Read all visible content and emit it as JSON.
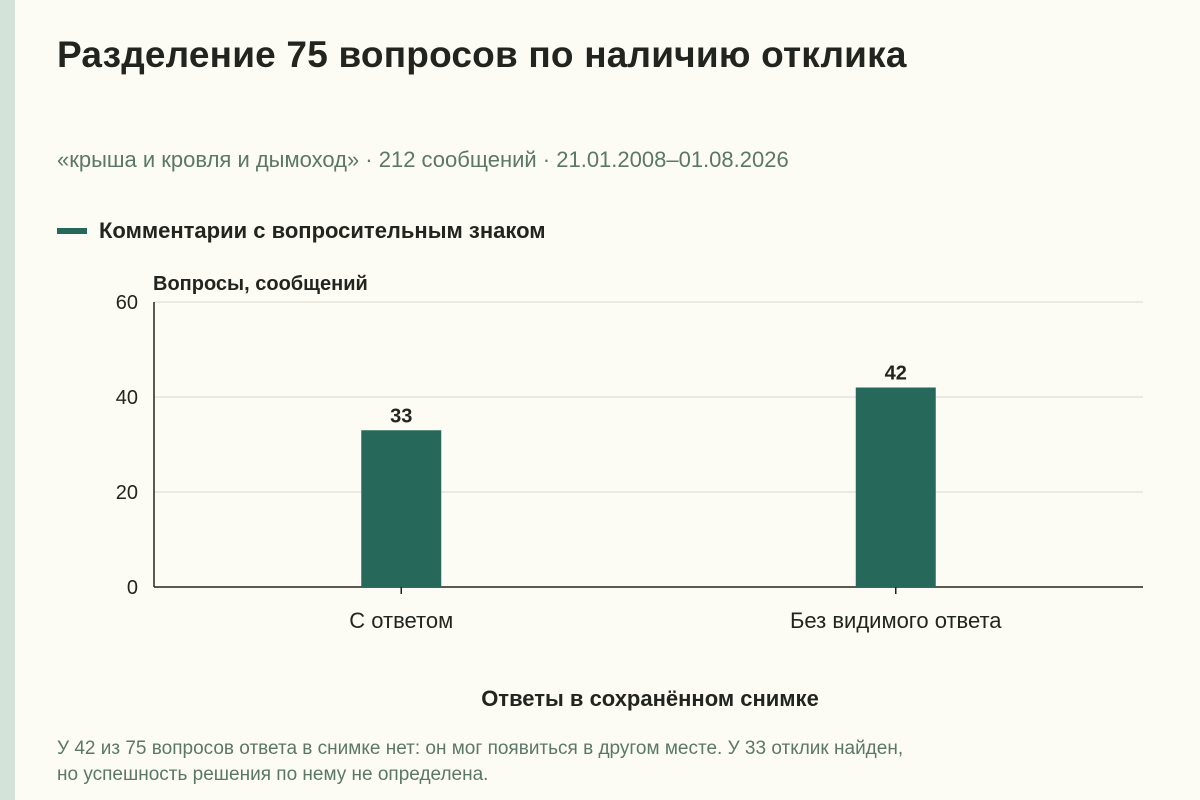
{
  "title": "Разделение 75 вопросов по наличию отклика",
  "subtitle": "«крыша и кровля и дымоход» · 212 сообщений · 21.01.2008–01.08.2026",
  "note": {
    "line1": "У 42 из 75 вопросов ответа в снимке нет: он мог появиться в другом месте. У 33 отклик найден,",
    "line2": "но успешность решения по нему не определена."
  },
  "colors": {
    "bar": "#26695a",
    "grid": "#d8d8d0",
    "axis": "#22251f",
    "background": "#fdfcf4",
    "side_stripe": "#d3e3da",
    "subtitle_text": "#5a7767"
  },
  "chart_data": {
    "type": "bar",
    "categories": [
      "С ответом",
      "Без видимого ответа"
    ],
    "series": [
      {
        "name": "Комментарии с вопросительным знаком",
        "values": [
          33,
          42
        ]
      }
    ],
    "data_labels": [
      "33",
      "42"
    ],
    "xlabel": "Ответы в сохранённом снимке",
    "ylabel": "Вопросы, сообщений",
    "ylim": [
      0,
      60
    ],
    "yticks": [
      0,
      20,
      40,
      60
    ],
    "grid": true,
    "legend": "top-left"
  }
}
